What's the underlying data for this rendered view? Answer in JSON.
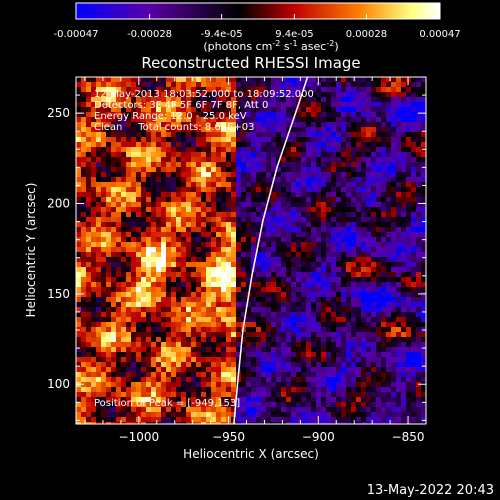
{
  "colorbar": {
    "tick_labels": [
      "-0.00047",
      "-0.00028",
      "-9.4e-05",
      "9.4e-05",
      "0.00028",
      "0.00047"
    ],
    "tick_values": [
      -0.00047,
      -0.00028,
      -9.4e-05,
      9.4e-05,
      0.00028,
      0.00047
    ],
    "range": [
      -0.00047,
      0.00047
    ],
    "units_text": "(photons cm",
    "units_sup1": "-2",
    "units_mid": " s",
    "units_sup2": "-1",
    "units_end": " asec",
    "units_sup3": "-2",
    "units_close": ")",
    "colors": [
      "#0000ff",
      "#5a00a8",
      "#000000",
      "#c00000",
      "#ff8000",
      "#ffff80",
      "#ffffff"
    ]
  },
  "chart_data": {
    "type": "heatmap",
    "title": "Reconstructed RHESSI Image",
    "xlabel": "Heliocentric X (arcsec)",
    "ylabel": "Heliocentric Y (arcsec)",
    "xlim": [
      -1035,
      -840
    ],
    "ylim": [
      78,
      270
    ],
    "xticks": [
      -1000,
      -950,
      -900,
      -850
    ],
    "xtick_labels": [
      "−1000",
      "−950",
      "−900",
      "−850"
    ],
    "yticks": [
      100,
      150,
      200,
      250
    ],
    "ytick_labels": [
      "100",
      "150",
      "200",
      "250"
    ],
    "limb_curve": {
      "points": [
        [
          -947,
          78
        ],
        [
          -945,
          100
        ],
        [
          -942,
          130
        ],
        [
          -937,
          160
        ],
        [
          -931,
          190
        ],
        [
          -923,
          220
        ],
        [
          -911,
          255
        ],
        [
          -906,
          270
        ]
      ]
    },
    "annotations": {
      "time": "12-May-2013 18:03:52.000 to 18:09:52.000",
      "detectors": "Detectors: 3F 4F 5F 6F 7F 8F, Att 0",
      "energy": "Energy Range: 12.0 - 25.0 keV",
      "clean": "Clean     Total counts: 8.66E+03",
      "peak": "Position of Peak = [-949,153]"
    }
  },
  "footer": {
    "timestamp": "13-May-2022 20:43"
  }
}
